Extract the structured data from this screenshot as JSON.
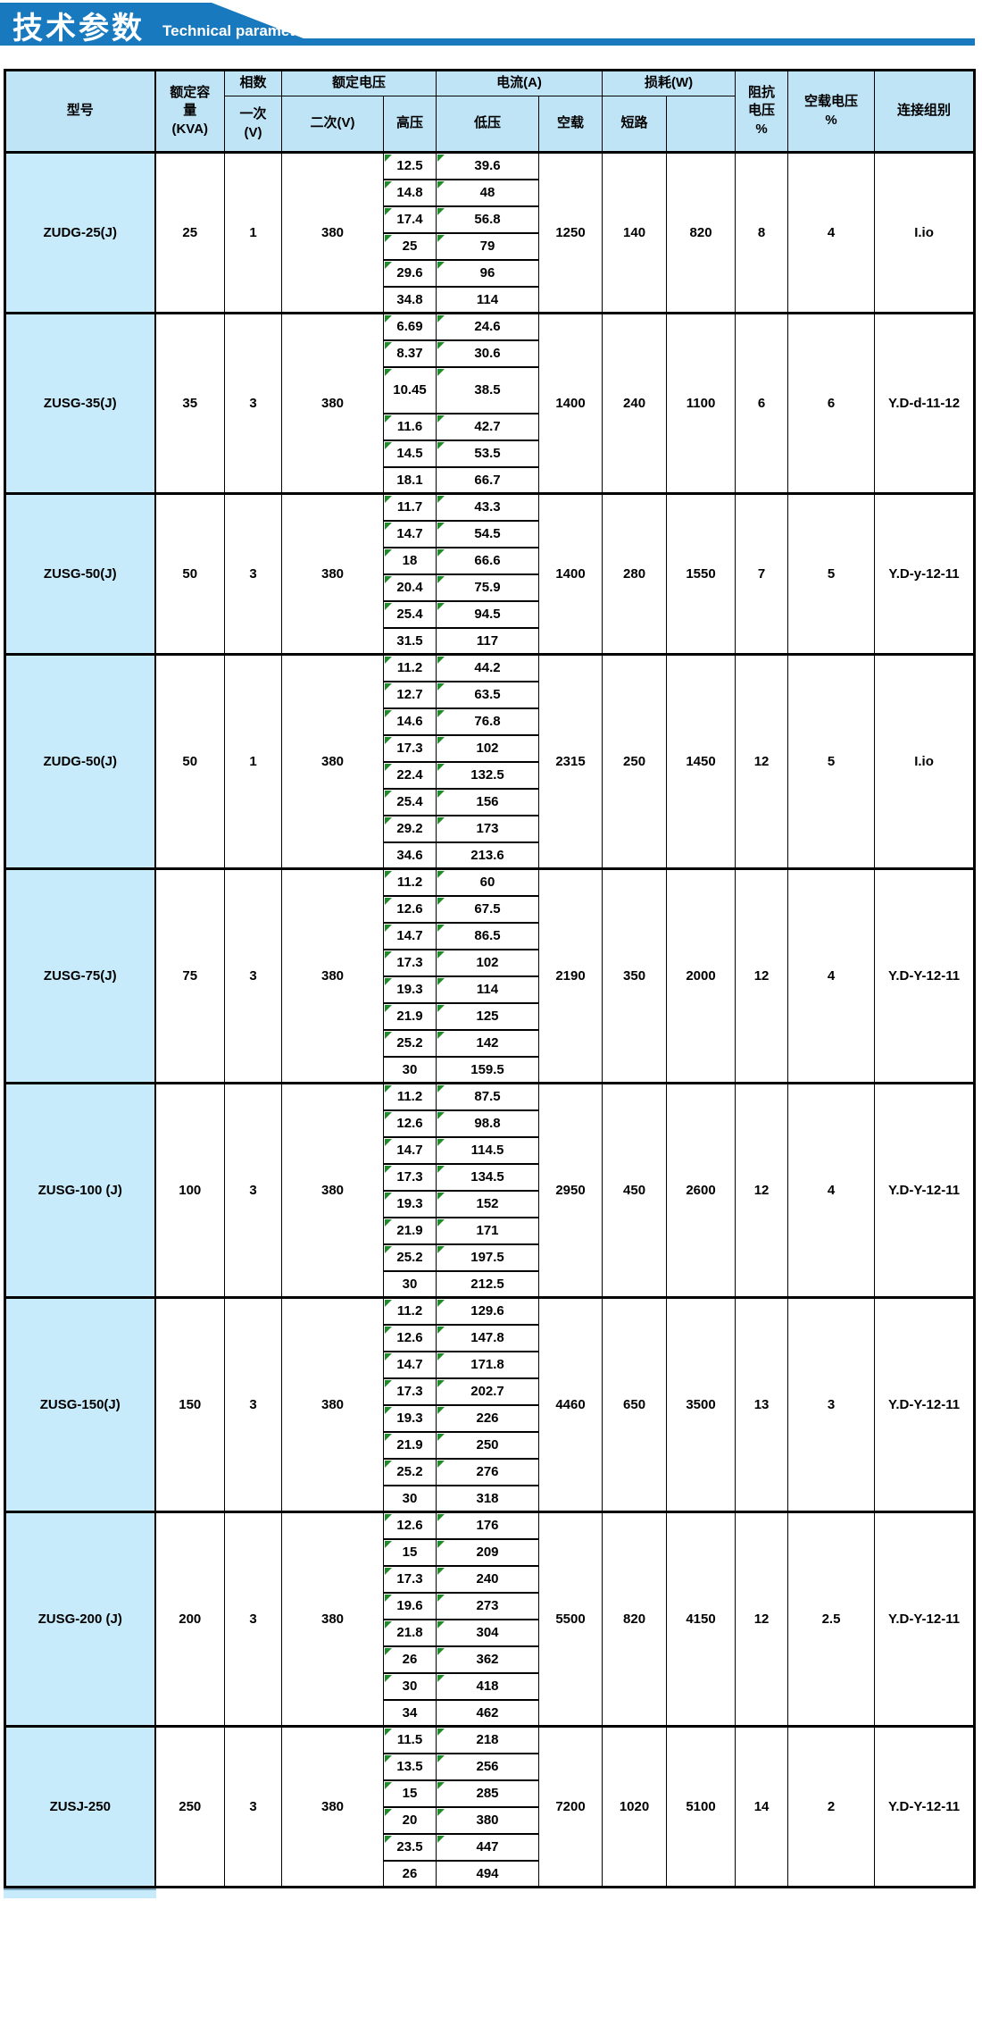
{
  "title": {
    "zh": "技术参数",
    "en": "Technical parameter"
  },
  "colors": {
    "ribbon_blue": "#1879be",
    "header_bg": "#bee4f6",
    "model_col_bg": "#c8ebfb",
    "flag_green": "#1e8c28",
    "border": "#000000"
  },
  "table": {
    "header": {
      "model": "型号",
      "capacity": "额定容\n量\n(KVA)",
      "phase": "相数",
      "primary": "一次\n(V)",
      "rated_voltage_group": "额定电压",
      "secondary": "二次(V)",
      "hv": "高压",
      "current_group": "电流(A)",
      "lv": "低压",
      "noload": "空载",
      "loss_group": "损耗(W)",
      "short_circuit": "短路",
      "loss_blank": "",
      "impedance": "阻抗\n电压\n%",
      "noload_voltage": "空载电压\n%",
      "connection": "连接组别"
    },
    "groups": [
      {
        "model": "ZUDG-25(J)",
        "capacity": "25",
        "phases": "1",
        "secondary": "380",
        "taps": [
          {
            "hv": "12.5",
            "lv": "39.6"
          },
          {
            "hv": "14.8",
            "lv": "48"
          },
          {
            "hv": "17.4",
            "lv": "56.8"
          },
          {
            "hv": "25",
            "lv": "79"
          },
          {
            "hv": "29.6",
            "lv": "96"
          },
          {
            "hv": "34.8",
            "lv": "114"
          }
        ],
        "noload": "1250",
        "short_circuit": "140",
        "loss2": "820",
        "impedance": "8",
        "noload_voltage": "4",
        "connection": "I.io"
      },
      {
        "model": "ZUSG-35(J)",
        "capacity": "35",
        "phases": "3",
        "secondary": "380",
        "taps": [
          {
            "hv": "6.69",
            "lv": "24.6"
          },
          {
            "hv": "8.37",
            "lv": "30.6"
          },
          {
            "hv": "10.45",
            "lv": "38.5",
            "tall": true
          },
          {
            "hv": "11.6",
            "lv": "42.7"
          },
          {
            "hv": "14.5",
            "lv": "53.5"
          },
          {
            "hv": "18.1",
            "lv": "66.7"
          }
        ],
        "noload": "1400",
        "short_circuit": "240",
        "loss2": "1100",
        "impedance": "6",
        "noload_voltage": "6",
        "connection": "Y.D-d-11-12"
      },
      {
        "model": "ZUSG-50(J)",
        "capacity": "50",
        "phases": "3",
        "secondary": "380",
        "taps": [
          {
            "hv": "11.7",
            "lv": "43.3"
          },
          {
            "hv": "14.7",
            "lv": "54.5"
          },
          {
            "hv": "18",
            "lv": "66.6"
          },
          {
            "hv": "20.4",
            "lv": "75.9"
          },
          {
            "hv": "25.4",
            "lv": "94.5"
          },
          {
            "hv": "31.5",
            "lv": "117"
          }
        ],
        "noload": "1400",
        "short_circuit": "280",
        "loss2": "1550",
        "impedance": "7",
        "noload_voltage": "5",
        "connection": "Y.D-y-12-11"
      },
      {
        "model": "ZUDG-50(J)",
        "capacity": "50",
        "phases": "1",
        "secondary": "380",
        "taps": [
          {
            "hv": "11.2",
            "lv": "44.2"
          },
          {
            "hv": "12.7",
            "lv": "63.5"
          },
          {
            "hv": "14.6",
            "lv": "76.8"
          },
          {
            "hv": "17.3",
            "lv": "102"
          },
          {
            "hv": "22.4",
            "lv": "132.5"
          },
          {
            "hv": "25.4",
            "lv": "156"
          },
          {
            "hv": "29.2",
            "lv": "173"
          },
          {
            "hv": "34.6",
            "lv": "213.6"
          }
        ],
        "noload": "2315",
        "short_circuit": "250",
        "loss2": "1450",
        "impedance": "12",
        "noload_voltage": "5",
        "connection": "I.io"
      },
      {
        "model": "ZUSG-75(J)",
        "capacity": "75",
        "phases": "3",
        "secondary": "380",
        "taps": [
          {
            "hv": "11.2",
            "lv": "60"
          },
          {
            "hv": "12.6",
            "lv": "67.5"
          },
          {
            "hv": "14.7",
            "lv": "86.5"
          },
          {
            "hv": "17.3",
            "lv": "102"
          },
          {
            "hv": "19.3",
            "lv": "114"
          },
          {
            "hv": "21.9",
            "lv": "125"
          },
          {
            "hv": "25.2",
            "lv": "142"
          },
          {
            "hv": "30",
            "lv": "159.5"
          }
        ],
        "noload": "2190",
        "short_circuit": "350",
        "loss2": "2000",
        "impedance": "12",
        "noload_voltage": "4",
        "connection": "Y.D-Y-12-11"
      },
      {
        "model": "ZUSG-100 (J)",
        "capacity": "100",
        "phases": "3",
        "secondary": "380",
        "taps": [
          {
            "hv": "11.2",
            "lv": "87.5"
          },
          {
            "hv": "12.6",
            "lv": "98.8"
          },
          {
            "hv": "14.7",
            "lv": "114.5"
          },
          {
            "hv": "17.3",
            "lv": "134.5"
          },
          {
            "hv": "19.3",
            "lv": "152"
          },
          {
            "hv": "21.9",
            "lv": "171"
          },
          {
            "hv": "25.2",
            "lv": "197.5"
          },
          {
            "hv": "30",
            "lv": "212.5"
          }
        ],
        "noload": "2950",
        "short_circuit": "450",
        "loss2": "2600",
        "impedance": "12",
        "noload_voltage": "4",
        "connection": "Y.D-Y-12-11"
      },
      {
        "model": "ZUSG-150(J)",
        "capacity": "150",
        "phases": "3",
        "secondary": "380",
        "taps": [
          {
            "hv": "11.2",
            "lv": "129.6"
          },
          {
            "hv": "12.6",
            "lv": "147.8"
          },
          {
            "hv": "14.7",
            "lv": "171.8"
          },
          {
            "hv": "17.3",
            "lv": "202.7"
          },
          {
            "hv": "19.3",
            "lv": "226"
          },
          {
            "hv": "21.9",
            "lv": "250"
          },
          {
            "hv": "25.2",
            "lv": "276"
          },
          {
            "hv": "30",
            "lv": "318"
          }
        ],
        "noload": "4460",
        "short_circuit": "650",
        "loss2": "3500",
        "impedance": "13",
        "noload_voltage": "3",
        "connection": "Y.D-Y-12-11"
      },
      {
        "model": "ZUSG-200 (J)",
        "capacity": "200",
        "phases": "3",
        "secondary": "380",
        "taps": [
          {
            "hv": "12.6",
            "lv": "176"
          },
          {
            "hv": "15",
            "lv": "209"
          },
          {
            "hv": "17.3",
            "lv": "240"
          },
          {
            "hv": "19.6",
            "lv": "273"
          },
          {
            "hv": "21.8",
            "lv": "304"
          },
          {
            "hv": "26",
            "lv": "362"
          },
          {
            "hv": "30",
            "lv": "418"
          },
          {
            "hv": "34",
            "lv": "462"
          }
        ],
        "noload": "5500",
        "short_circuit": "820",
        "loss2": "4150",
        "impedance": "12",
        "noload_voltage": "2.5",
        "connection": "Y.D-Y-12-11"
      },
      {
        "model": "ZUSJ-250",
        "capacity": "250",
        "phases": "3",
        "secondary": "380",
        "taps": [
          {
            "hv": "11.5",
            "lv": "218"
          },
          {
            "hv": "13.5",
            "lv": "256"
          },
          {
            "hv": "15",
            "lv": "285"
          },
          {
            "hv": "20",
            "lv": "380"
          },
          {
            "hv": "23.5",
            "lv": "447"
          },
          {
            "hv": "26",
            "lv": "494"
          }
        ],
        "noload": "7200",
        "short_circuit": "1020",
        "loss2": "5100",
        "impedance": "14",
        "noload_voltage": "2",
        "connection": "Y.D-Y-12-11"
      }
    ]
  }
}
